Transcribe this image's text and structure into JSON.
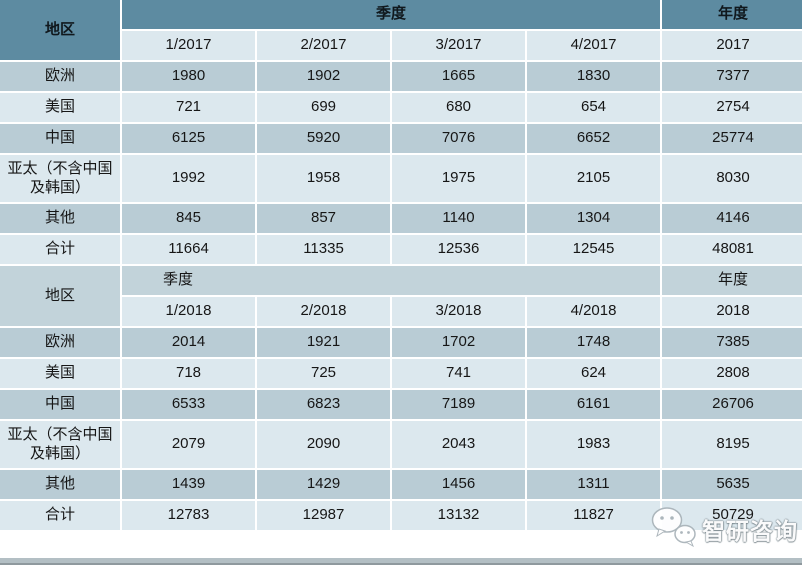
{
  "chart_data": {
    "type": "table",
    "tables": [
      {
        "region_label": "地区",
        "quarter_label": "季度",
        "year_label": "年度",
        "columns": [
          "1/2017",
          "2/2017",
          "3/2017",
          "4/2017",
          "2017"
        ],
        "rows": [
          {
            "label": "欧洲",
            "values": [
              1980,
              1902,
              1665,
              1830,
              7377
            ]
          },
          {
            "label": "美国",
            "values": [
              721,
              699,
              680,
              654,
              2754
            ]
          },
          {
            "label": "中国",
            "values": [
              6125,
              5920,
              7076,
              6652,
              25774
            ]
          },
          {
            "label": "亚太（不含中国及韩国）",
            "values": [
              1992,
              1958,
              1975,
              2105,
              8030
            ]
          },
          {
            "label": "其他",
            "values": [
              845,
              857,
              1140,
              1304,
              4146
            ]
          },
          {
            "label": "合计",
            "values": [
              11664,
              11335,
              12536,
              12545,
              48081
            ]
          }
        ]
      },
      {
        "region_label": "地区",
        "quarter_label": "季度",
        "year_label": "年度",
        "columns": [
          "1/2018",
          "2/2018",
          "3/2018",
          "4/2018",
          "2018"
        ],
        "rows": [
          {
            "label": "欧洲",
            "values": [
              2014,
              1921,
              1702,
              1748,
              7385
            ]
          },
          {
            "label": "美国",
            "values": [
              718,
              725,
              741,
              624,
              2808
            ]
          },
          {
            "label": "中国",
            "values": [
              6533,
              6823,
              7189,
              6161,
              26706
            ]
          },
          {
            "label": "亚太（不含中国及韩国）",
            "values": [
              2079,
              2090,
              2043,
              1983,
              8195
            ]
          },
          {
            "label": "其他",
            "values": [
              1439,
              1429,
              1456,
              1311,
              5635
            ]
          },
          {
            "label": "合计",
            "values": [
              12783,
              12987,
              13132,
              11827,
              50729
            ]
          }
        ]
      }
    ]
  },
  "watermark": {
    "text": "智研咨询"
  },
  "colors": {
    "header_teal": "#5d8ba1",
    "header_soft": "#c2d3da",
    "row_dark": "#b9ccd5",
    "row_light": "#dce8ee",
    "border": "#ffffff"
  }
}
